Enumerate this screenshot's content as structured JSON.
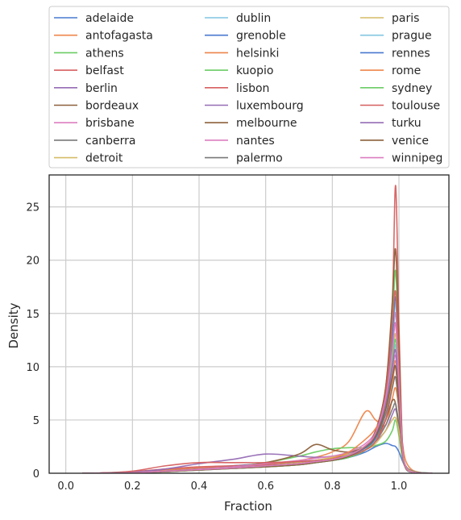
{
  "chart_data": {
    "type": "line",
    "xlabel": "Fraction",
    "ylabel": "Density",
    "xlim": [
      -0.05,
      1.15
    ],
    "ylim": [
      0,
      28
    ],
    "xticks": [
      "0.0",
      "0.2",
      "0.4",
      "0.6",
      "0.8",
      "1.0"
    ],
    "yticks": [
      "0",
      "5",
      "10",
      "15",
      "20",
      "25"
    ],
    "grid": true,
    "legend_position": "top, above plot, 3 columns",
    "x": [
      0.05,
      0.1,
      0.2,
      0.3,
      0.4,
      0.5,
      0.6,
      0.7,
      0.75,
      0.8,
      0.85,
      0.9,
      0.93,
      0.96,
      0.98,
      0.99,
      1.0,
      1.01,
      1.02,
      1.04,
      1.07,
      1.1
    ],
    "series": [
      {
        "name": "adelaide",
        "color": "#4878d0",
        "values": [
          0,
          0.02,
          0.1,
          0.3,
          0.5,
          0.7,
          0.9,
          1.1,
          1.2,
          1.3,
          1.5,
          2.0,
          2.5,
          2.8,
          2.6,
          2.5,
          2.0,
          1.2,
          0.6,
          0.2,
          0.05,
          0
        ]
      },
      {
        "name": "antofagasta",
        "color": "#ee854a",
        "values": [
          0,
          0.02,
          0.1,
          0.3,
          0.5,
          0.6,
          0.8,
          1.2,
          1.5,
          2.0,
          3.0,
          5.8,
          5.0,
          4.5,
          7.0,
          8.0,
          6.0,
          3.0,
          1.2,
          0.3,
          0.05,
          0
        ]
      },
      {
        "name": "athens",
        "color": "#6acc64",
        "values": [
          0,
          0.01,
          0.05,
          0.2,
          0.4,
          0.6,
          1.0,
          1.6,
          2.0,
          2.3,
          2.4,
          2.4,
          2.6,
          3.0,
          4.0,
          5.0,
          3.5,
          1.5,
          0.6,
          0.2,
          0.05,
          0
        ]
      },
      {
        "name": "belfast",
        "color": "#d65f5f",
        "values": [
          0,
          0.02,
          0.15,
          0.4,
          0.6,
          0.7,
          0.8,
          1.0,
          1.2,
          1.4,
          1.7,
          2.5,
          4.0,
          8.0,
          16.0,
          27.0,
          14.0,
          3.0,
          0.6,
          0.1,
          0.02,
          0
        ]
      },
      {
        "name": "berlin",
        "color": "#956cb4",
        "values": [
          0,
          0.02,
          0.1,
          0.4,
          0.9,
          1.3,
          1.8,
          1.6,
          1.5,
          1.6,
          1.9,
          2.4,
          3.0,
          4.0,
          5.5,
          6.0,
          4.5,
          2.0,
          0.7,
          0.2,
          0.03,
          0
        ]
      },
      {
        "name": "bordeaux",
        "color": "#8c613c",
        "values": [
          0,
          0.01,
          0.05,
          0.2,
          0.4,
          0.6,
          1.0,
          1.8,
          2.7,
          2.2,
          2.0,
          2.5,
          3.2,
          5.0,
          6.8,
          6.5,
          4.0,
          1.8,
          0.6,
          0.15,
          0.02,
          0
        ]
      },
      {
        "name": "brisbane",
        "color": "#dc7ec0",
        "values": [
          0,
          0.01,
          0.05,
          0.2,
          0.4,
          0.6,
          0.9,
          1.2,
          1.4,
          1.6,
          2.0,
          2.8,
          4.0,
          7.0,
          12.0,
          15.0,
          9.0,
          2.5,
          0.6,
          0.1,
          0.02,
          0
        ]
      },
      {
        "name": "canberra",
        "color": "#797979",
        "values": [
          0,
          0.01,
          0.05,
          0.2,
          0.35,
          0.5,
          0.7,
          1.0,
          1.2,
          1.4,
          1.7,
          2.2,
          3.0,
          4.5,
          6.0,
          6.5,
          4.5,
          2.0,
          0.7,
          0.2,
          0.03,
          0
        ]
      },
      {
        "name": "detroit",
        "color": "#d5bb67",
        "values": [
          0,
          0.01,
          0.05,
          0.2,
          0.35,
          0.5,
          0.7,
          1.0,
          1.2,
          1.5,
          1.8,
          2.2,
          2.8,
          4.0,
          5.0,
          5.2,
          4.0,
          1.8,
          0.6,
          0.15,
          0.02,
          0
        ]
      },
      {
        "name": "dublin",
        "color": "#82c6e2",
        "values": [
          0,
          0.01,
          0.05,
          0.2,
          0.35,
          0.5,
          0.7,
          0.9,
          1.1,
          1.3,
          1.6,
          2.2,
          3.2,
          6.0,
          12.0,
          16.0,
          10.0,
          2.8,
          0.6,
          0.1,
          0.02,
          0
        ]
      },
      {
        "name": "grenoble",
        "color": "#4878d0",
        "values": [
          0,
          0.01,
          0.05,
          0.15,
          0.3,
          0.45,
          0.6,
          0.8,
          1.0,
          1.2,
          1.5,
          2.2,
          3.5,
          7.0,
          13.0,
          16.5,
          10.0,
          2.5,
          0.5,
          0.1,
          0.02,
          0
        ]
      },
      {
        "name": "helsinki",
        "color": "#ee854a",
        "values": [
          0,
          0.01,
          0.05,
          0.2,
          0.35,
          0.5,
          0.7,
          0.9,
          1.1,
          1.3,
          1.7,
          2.4,
          3.5,
          6.0,
          9.0,
          10.5,
          7.0,
          2.2,
          0.5,
          0.1,
          0.02,
          0
        ]
      },
      {
        "name": "kuopio",
        "color": "#6acc64",
        "values": [
          0,
          0.01,
          0.05,
          0.15,
          0.3,
          0.45,
          0.6,
          0.8,
          1.0,
          1.2,
          1.5,
          2.2,
          3.5,
          7.0,
          14.0,
          19.0,
          11.0,
          2.8,
          0.6,
          0.1,
          0.02,
          0
        ]
      },
      {
        "name": "lisbon",
        "color": "#d65f5f",
        "values": [
          0,
          0.02,
          0.2,
          0.7,
          1.0,
          1.0,
          1.0,
          1.1,
          1.2,
          1.3,
          1.6,
          2.2,
          3.0,
          5.0,
          8.0,
          9.0,
          6.0,
          2.0,
          0.5,
          0.1,
          0.02,
          0
        ]
      },
      {
        "name": "luxembourg",
        "color": "#956cb4",
        "values": [
          0,
          0.01,
          0.05,
          0.2,
          0.35,
          0.5,
          0.7,
          0.9,
          1.1,
          1.3,
          1.7,
          2.5,
          3.8,
          7.0,
          12.0,
          14.0,
          8.5,
          2.5,
          0.6,
          0.1,
          0.02,
          0
        ]
      },
      {
        "name": "melbourne",
        "color": "#8c613c",
        "values": [
          0,
          0.01,
          0.05,
          0.15,
          0.3,
          0.45,
          0.6,
          0.8,
          1.0,
          1.2,
          1.6,
          2.5,
          4.0,
          8.0,
          16.0,
          21.0,
          12.0,
          3.0,
          0.6,
          0.1,
          0.02,
          0
        ]
      },
      {
        "name": "nantes",
        "color": "#dc7ec0",
        "values": [
          0,
          0.01,
          0.05,
          0.2,
          0.35,
          0.5,
          0.7,
          0.9,
          1.1,
          1.3,
          1.7,
          2.5,
          3.5,
          6.0,
          9.5,
          11.0,
          7.0,
          2.2,
          0.5,
          0.1,
          0.02,
          0
        ]
      },
      {
        "name": "palermo",
        "color": "#797979",
        "values": [
          0,
          0.01,
          0.05,
          0.2,
          0.35,
          0.5,
          0.7,
          0.9,
          1.1,
          1.3,
          1.7,
          2.4,
          3.3,
          5.5,
          8.0,
          9.0,
          6.0,
          2.0,
          0.5,
          0.1,
          0.02,
          0
        ]
      },
      {
        "name": "paris",
        "color": "#d5bb67",
        "values": [
          0,
          0.01,
          0.05,
          0.2,
          0.35,
          0.5,
          0.7,
          0.9,
          1.1,
          1.3,
          1.7,
          2.6,
          3.8,
          7.0,
          11.0,
          13.0,
          8.0,
          2.4,
          0.5,
          0.1,
          0.02,
          0
        ]
      },
      {
        "name": "prague",
        "color": "#82c6e2",
        "values": [
          0,
          0.01,
          0.05,
          0.2,
          0.35,
          0.5,
          0.7,
          0.9,
          1.1,
          1.3,
          1.7,
          2.5,
          3.6,
          6.5,
          10.0,
          12.0,
          7.5,
          2.3,
          0.5,
          0.1,
          0.02,
          0
        ]
      },
      {
        "name": "rennes",
        "color": "#4878d0",
        "values": [
          0,
          0.01,
          0.05,
          0.2,
          0.35,
          0.5,
          0.7,
          0.9,
          1.1,
          1.3,
          1.7,
          2.4,
          3.4,
          6.0,
          9.0,
          10.0,
          6.5,
          2.1,
          0.5,
          0.1,
          0.02,
          0
        ]
      },
      {
        "name": "rome",
        "color": "#ee854a",
        "values": [
          0,
          0.01,
          0.05,
          0.2,
          0.35,
          0.5,
          0.7,
          0.9,
          1.1,
          1.4,
          2.0,
          3.2,
          4.2,
          6.0,
          8.5,
          10.0,
          6.5,
          2.0,
          0.5,
          0.1,
          0.02,
          0
        ]
      },
      {
        "name": "sydney",
        "color": "#6acc64",
        "values": [
          0,
          0.01,
          0.05,
          0.2,
          0.35,
          0.5,
          0.7,
          0.9,
          1.1,
          1.3,
          1.7,
          2.5,
          3.6,
          6.5,
          10.5,
          12.5,
          8.0,
          2.4,
          0.5,
          0.1,
          0.02,
          0
        ]
      },
      {
        "name": "toulouse",
        "color": "#d65f5f",
        "values": [
          0,
          0.01,
          0.05,
          0.2,
          0.35,
          0.5,
          0.7,
          0.9,
          1.1,
          1.3,
          1.7,
          2.5,
          3.8,
          7.5,
          14.0,
          17.0,
          10.0,
          2.6,
          0.6,
          0.1,
          0.02,
          0
        ]
      },
      {
        "name": "turku",
        "color": "#956cb4",
        "values": [
          0,
          0.01,
          0.05,
          0.2,
          0.35,
          0.5,
          0.7,
          0.9,
          1.1,
          1.3,
          1.7,
          2.5,
          3.6,
          6.5,
          10.0,
          11.5,
          7.0,
          2.2,
          0.5,
          0.1,
          0.02,
          0
        ]
      },
      {
        "name": "venice",
        "color": "#8c613c",
        "values": [
          0,
          0.01,
          0.05,
          0.2,
          0.35,
          0.5,
          0.7,
          0.9,
          1.1,
          1.3,
          1.7,
          2.5,
          3.5,
          6.0,
          9.0,
          10.0,
          6.5,
          2.1,
          0.5,
          0.1,
          0.02,
          0
        ]
      },
      {
        "name": "winnipeg",
        "color": "#dc7ec0",
        "values": [
          0,
          0.01,
          0.05,
          0.2,
          0.35,
          0.5,
          0.7,
          0.9,
          1.1,
          1.3,
          1.7,
          2.6,
          3.8,
          7.0,
          11.5,
          14.0,
          8.5,
          2.5,
          0.6,
          0.1,
          0.02,
          0
        ]
      }
    ]
  }
}
